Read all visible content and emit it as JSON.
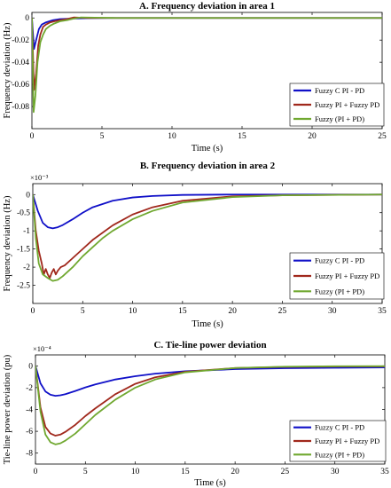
{
  "chart_data": [
    {
      "type": "line",
      "title": "A. Frequency deviation in area 1",
      "xlabel": "Time (s)",
      "ylabel": "Frequency deviation (Hz)",
      "xlim": [
        0,
        25
      ],
      "ylim": [
        -0.1,
        0.005
      ],
      "xticks": [
        0,
        5,
        10,
        15,
        20,
        25
      ],
      "xtick_labels": [
        "0",
        "5",
        "10",
        "15",
        "20",
        "25"
      ],
      "yticks": [
        0,
        -0.02,
        -0.04,
        -0.06,
        -0.08
      ],
      "ytick_labels": [
        "0",
        "-0.02",
        "-0.04",
        "-0.06",
        "-0.08"
      ],
      "exponent": "",
      "legend": "bottom-right",
      "series": [
        {
          "name": "Fuzzy C PI - PD",
          "color": "#1010c8",
          "x": [
            0,
            0.15,
            0.3,
            0.5,
            0.7,
            1.0,
            1.5,
            2.0,
            3.0,
            4.0,
            6.0,
            10.0,
            25.0
          ],
          "y": [
            0,
            -0.028,
            -0.02,
            -0.01,
            -0.006,
            -0.004,
            -0.002,
            -0.001,
            -0.0005,
            -0.0002,
            0,
            0,
            0
          ]
        },
        {
          "name": "Fuzzy PI + Fuzzy PD",
          "color": "#a0281c",
          "x": [
            0,
            0.15,
            0.3,
            0.45,
            0.6,
            0.8,
            1.0,
            1.3,
            1.6,
            2.0,
            2.5,
            3.0,
            4.0,
            6.0,
            25.0
          ],
          "y": [
            0,
            -0.065,
            -0.05,
            -0.025,
            -0.015,
            -0.008,
            -0.006,
            -0.004,
            -0.003,
            -0.002,
            -0.001,
            0.0005,
            0,
            0,
            0
          ]
        },
        {
          "name": "Fuzzy (PI + PD)",
          "color": "#70a830",
          "x": [
            0,
            0.12,
            0.25,
            0.4,
            0.6,
            0.8,
            1.0,
            1.3,
            1.6,
            2.0,
            2.5,
            3.0,
            3.5,
            4.5,
            6.0,
            25.0
          ],
          "y": [
            0,
            -0.085,
            -0.07,
            -0.04,
            -0.022,
            -0.015,
            -0.01,
            -0.007,
            -0.005,
            -0.003,
            -0.002,
            -0.0005,
            0.0005,
            0.0003,
            0,
            0
          ]
        }
      ]
    },
    {
      "type": "line",
      "title": "B. Frequency deviation in area 2",
      "xlabel": "Time (s)",
      "ylabel": "Frequency deviation (Hz)",
      "xlim": [
        0,
        35
      ],
      "ylim": [
        -3,
        0.3
      ],
      "xticks": [
        0,
        5,
        10,
        15,
        20,
        25,
        30,
        35
      ],
      "xtick_labels": [
        "0",
        "5",
        "10",
        "15",
        "20",
        "25",
        "30",
        "35"
      ],
      "yticks": [
        0,
        -0.5,
        -1,
        -1.5,
        -2,
        -2.5
      ],
      "ytick_labels": [
        "0",
        "-0.5",
        "-1",
        "-1.5",
        "-2",
        "-2.5"
      ],
      "exponent": "×10⁻³",
      "legend": "bottom-right",
      "series": [
        {
          "name": "Fuzzy C PI - PD",
          "color": "#1010c8",
          "x": [
            0,
            0.5,
            1,
            1.5,
            2,
            2.5,
            3,
            4,
            5,
            6,
            8,
            10,
            12,
            15,
            20,
            25,
            35
          ],
          "y": [
            0,
            -0.45,
            -0.78,
            -0.9,
            -0.93,
            -0.9,
            -0.84,
            -0.68,
            -0.5,
            -0.35,
            -0.17,
            -0.08,
            -0.04,
            -0.01,
            0,
            0,
            0
          ]
        },
        {
          "name": "Fuzzy PI + Fuzzy PD",
          "color": "#a0281c",
          "x": [
            0,
            0.3,
            0.6,
            0.9,
            1.1,
            1.3,
            1.5,
            1.7,
            1.9,
            2.1,
            2.3,
            2.5,
            2.8,
            3.2,
            4,
            5,
            6,
            8,
            10,
            12,
            15,
            20,
            25,
            35
          ],
          "y": [
            0,
            -1.0,
            -1.55,
            -1.9,
            -2.2,
            -2.05,
            -2.2,
            -2.3,
            -2.15,
            -2.05,
            -2.2,
            -2.1,
            -2.0,
            -1.95,
            -1.75,
            -1.5,
            -1.25,
            -0.85,
            -0.55,
            -0.35,
            -0.17,
            -0.05,
            -0.02,
            0
          ]
        },
        {
          "name": "Fuzzy (PI + PD)",
          "color": "#70a830",
          "x": [
            0,
            0.3,
            0.6,
            1,
            1.5,
            2,
            2.5,
            3,
            4,
            5,
            6,
            7,
            8,
            10,
            12,
            15,
            20,
            25,
            35
          ],
          "y": [
            0,
            -1.2,
            -1.9,
            -2.2,
            -2.3,
            -2.38,
            -2.35,
            -2.25,
            -2.0,
            -1.7,
            -1.45,
            -1.2,
            -1.0,
            -0.68,
            -0.45,
            -0.22,
            -0.07,
            -0.02,
            0
          ]
        }
      ]
    },
    {
      "type": "line",
      "title": "C. Tie-line power deviation",
      "xlabel": "Time (s)",
      "ylabel": "Tie-line power deviation (pu)",
      "xlim": [
        0,
        35
      ],
      "ylim": [
        -9,
        1
      ],
      "xticks": [
        0,
        5,
        10,
        15,
        20,
        25,
        30,
        35
      ],
      "xtick_labels": [
        "0",
        "5",
        "10",
        "15",
        "20",
        "25",
        "30",
        "35"
      ],
      "yticks": [
        0,
        -2,
        -4,
        -6,
        -8
      ],
      "ytick_labels": [
        "0",
        "-2",
        "-4",
        "-6",
        "-8"
      ],
      "exponent": "×10⁻⁴",
      "legend": "bottom-right",
      "series": [
        {
          "name": "Fuzzy C PI - PD",
          "color": "#1010c8",
          "x": [
            0,
            0.5,
            1,
            1.5,
            2,
            2.5,
            3,
            4,
            5,
            6,
            8,
            10,
            12,
            15,
            20,
            25,
            30,
            35
          ],
          "y": [
            0,
            -1.6,
            -2.35,
            -2.65,
            -2.75,
            -2.7,
            -2.6,
            -2.3,
            -1.98,
            -1.7,
            -1.25,
            -0.95,
            -0.72,
            -0.5,
            -0.3,
            -0.22,
            -0.18,
            -0.15
          ]
        },
        {
          "name": "Fuzzy PI + Fuzzy PD",
          "color": "#a0281c",
          "x": [
            0,
            0.5,
            1,
            1.5,
            2,
            2.5,
            3,
            4,
            5,
            6,
            8,
            10,
            12,
            15,
            20,
            25,
            30,
            35
          ],
          "y": [
            0,
            -3.8,
            -5.6,
            -6.2,
            -6.4,
            -6.3,
            -6.05,
            -5.4,
            -4.6,
            -3.9,
            -2.6,
            -1.65,
            -1.05,
            -0.55,
            -0.2,
            -0.1,
            -0.06,
            -0.05
          ]
        },
        {
          "name": "Fuzzy (PI + PD)",
          "color": "#70a830",
          "x": [
            0,
            0.5,
            1,
            1.5,
            2,
            2.5,
            3,
            4,
            5,
            6,
            8,
            10,
            12,
            15,
            20,
            25,
            30,
            35
          ],
          "y": [
            0,
            -4.2,
            -6.3,
            -7.0,
            -7.2,
            -7.1,
            -6.85,
            -6.2,
            -5.35,
            -4.5,
            -3.1,
            -2.0,
            -1.25,
            -0.6,
            -0.2,
            -0.08,
            -0.04,
            -0.03
          ]
        }
      ]
    }
  ]
}
